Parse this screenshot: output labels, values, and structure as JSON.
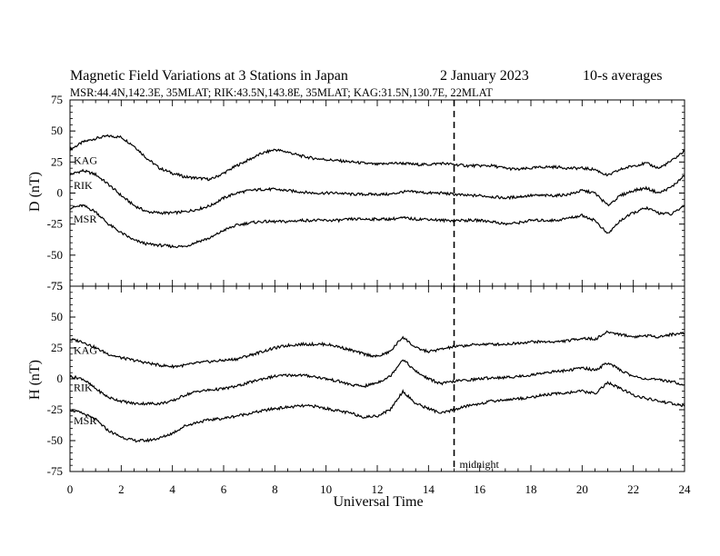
{
  "header": {
    "title": "Magnetic Field Variations at 3 Stations in Japan",
    "date": "2   January  2023",
    "averaging": "10-s averages",
    "stations_info": "MSR:44.4N,142.3E, 35MLAT;  RIK:43.5N,143.8E, 35MLAT;  KAG:31.5N,130.7E, 22MLAT"
  },
  "chart_data": [
    {
      "type": "line",
      "panel": "D",
      "ylabel": "D (nT)",
      "xlabel": "",
      "xlim": [
        0,
        24
      ],
      "ylim": [
        -75,
        75
      ],
      "yticks": [
        75,
        50,
        25,
        0,
        -25,
        -50,
        -75
      ],
      "x": [
        0,
        0.5,
        1,
        1.5,
        2,
        2.5,
        3,
        3.5,
        4,
        4.5,
        5,
        5.5,
        6,
        6.5,
        7,
        7.5,
        8,
        8.5,
        9,
        9.5,
        10,
        10.5,
        11,
        11.5,
        12,
        12.5,
        13,
        13.5,
        14,
        14.5,
        15,
        15.5,
        16,
        16.5,
        17,
        17.5,
        18,
        18.5,
        19,
        19.5,
        20,
        20.5,
        21,
        21.5,
        22,
        22.5,
        23,
        23.5,
        24
      ],
      "series": [
        {
          "name": "KAG",
          "values": [
            35,
            41,
            44,
            46,
            45,
            38,
            28,
            20,
            16,
            13,
            12,
            11,
            16,
            22,
            27,
            32,
            35,
            33,
            30,
            28,
            27,
            26,
            25,
            24,
            23,
            24,
            24,
            23,
            23,
            24,
            23,
            22,
            22,
            22,
            20,
            19,
            20,
            21,
            21,
            20,
            20,
            19,
            14,
            19,
            22,
            24,
            20,
            26,
            34
          ]
        },
        {
          "name": "RIK",
          "values": [
            15,
            18,
            15,
            7,
            -2,
            -10,
            -15,
            -16,
            -16,
            -15,
            -13,
            -10,
            -4,
            0,
            2,
            3,
            3,
            2,
            1,
            0,
            0,
            0,
            -1,
            -1,
            -1,
            -1,
            1,
            1,
            0,
            0,
            -1,
            -2,
            -2,
            -3,
            -4,
            -3,
            -2,
            -2,
            -2,
            -1,
            2,
            0,
            -10,
            -2,
            2,
            4,
            0,
            5,
            14
          ]
        },
        {
          "name": "MSR",
          "values": [
            -12,
            -10,
            -15,
            -25,
            -32,
            -38,
            -41,
            -42,
            -43,
            -43,
            -39,
            -36,
            -30,
            -26,
            -24,
            -23,
            -23,
            -23,
            -22,
            -22,
            -22,
            -22,
            -21,
            -21,
            -21,
            -21,
            -20,
            -21,
            -21,
            -22,
            -22,
            -22,
            -22,
            -23,
            -25,
            -24,
            -22,
            -22,
            -22,
            -20,
            -18,
            -22,
            -33,
            -22,
            -16,
            -12,
            -16,
            -17,
            -10
          ]
        }
      ],
      "annotations": []
    },
    {
      "type": "line",
      "panel": "H",
      "ylabel": "H (nT)",
      "xlabel": "Universal Time",
      "xlim": [
        0,
        24
      ],
      "ylim": [
        -75,
        75
      ],
      "yticks": [
        75,
        50,
        25,
        0,
        -25,
        -50,
        -75
      ],
      "xticks": [
        0,
        2,
        4,
        6,
        8,
        10,
        12,
        14,
        16,
        18,
        20,
        22,
        24
      ],
      "x": [
        0,
        0.5,
        1,
        1.5,
        2,
        2.5,
        3,
        3.5,
        4,
        4.5,
        5,
        5.5,
        6,
        6.5,
        7,
        7.5,
        8,
        8.5,
        9,
        9.5,
        10,
        10.5,
        11,
        11.5,
        12,
        12.5,
        13,
        13.5,
        14,
        14.5,
        15,
        15.5,
        16,
        16.5,
        17,
        17.5,
        18,
        18.5,
        19,
        19.5,
        20,
        20.5,
        21,
        21.5,
        22,
        22.5,
        23,
        23.5,
        24
      ],
      "series": [
        {
          "name": "KAG",
          "values": [
            32,
            30,
            25,
            20,
            17,
            15,
            13,
            11,
            10,
            11,
            13,
            14,
            15,
            16,
            19,
            22,
            25,
            27,
            28,
            28,
            28,
            26,
            23,
            20,
            18,
            22,
            34,
            25,
            22,
            24,
            26,
            27,
            28,
            28,
            28,
            29,
            30,
            30,
            30,
            31,
            33,
            32,
            38,
            36,
            34,
            35,
            34,
            36,
            37
          ]
        },
        {
          "name": "RIK",
          "values": [
            2,
            0,
            -8,
            -15,
            -18,
            -20,
            -20,
            -20,
            -18,
            -13,
            -10,
            -9,
            -8,
            -6,
            -3,
            0,
            2,
            3,
            3,
            2,
            0,
            -2,
            -5,
            -6,
            -3,
            2,
            16,
            6,
            0,
            -4,
            -2,
            -1,
            0,
            1,
            1,
            2,
            3,
            5,
            6,
            7,
            9,
            7,
            13,
            7,
            2,
            0,
            -1,
            -2,
            -5
          ]
        },
        {
          "name": "MSR",
          "values": [
            -25,
            -28,
            -33,
            -42,
            -47,
            -50,
            -50,
            -48,
            -44,
            -38,
            -35,
            -33,
            -32,
            -30,
            -28,
            -26,
            -24,
            -23,
            -22,
            -22,
            -24,
            -26,
            -28,
            -31,
            -30,
            -25,
            -10,
            -20,
            -24,
            -28,
            -25,
            -22,
            -20,
            -18,
            -17,
            -16,
            -15,
            -13,
            -12,
            -11,
            -10,
            -12,
            -3,
            -8,
            -13,
            -16,
            -18,
            -20,
            -22
          ]
        }
      ],
      "annotations": [
        {
          "text": "midnight",
          "x": 15
        }
      ]
    }
  ]
}
